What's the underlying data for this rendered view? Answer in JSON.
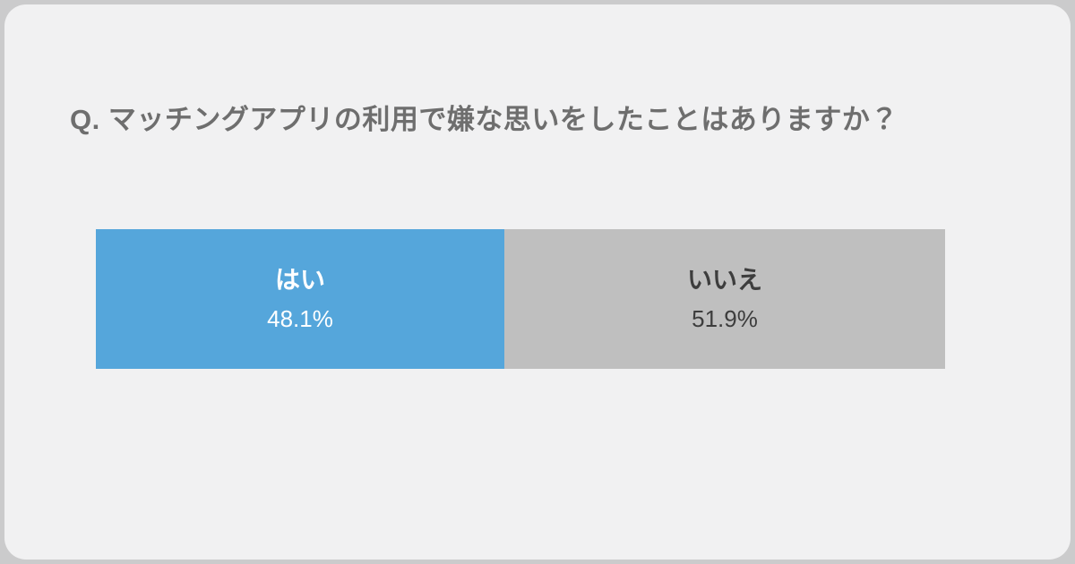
{
  "question": {
    "text": "Q. マッチングアプリの利用で嫌な思いをしたことはありますか？"
  },
  "chart_data": {
    "type": "bar",
    "variant": "horizontal-stacked-100pct",
    "title": "Q. マッチングアプリの利用で嫌な思いをしたことはありますか？",
    "categories": [
      "はい",
      "いいえ"
    ],
    "values": [
      48.1,
      51.9
    ],
    "unit": "%",
    "legend_position": "inside-bar",
    "grid": false,
    "segments": [
      {
        "label": "はい",
        "value": 48.1,
        "value_label": "48.1%",
        "color": "#55a6db",
        "text_color": "#ffffff"
      },
      {
        "label": "いいえ",
        "value": 51.9,
        "value_label": "51.9%",
        "color": "#bfbfbf",
        "text_color": "#3d3d3d"
      }
    ]
  },
  "colors": {
    "card_background": "#f1f1f2",
    "outer_edge": "#cbcbcc",
    "title_text": "#6e6e6e",
    "yes_segment": "#55a6db",
    "no_segment": "#bfbfbf"
  }
}
